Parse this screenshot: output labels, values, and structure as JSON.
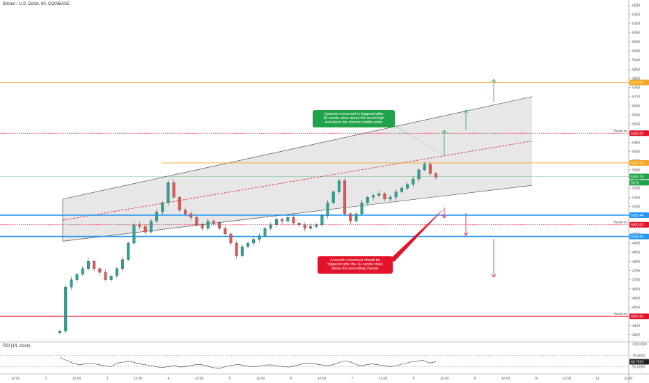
{
  "header": {
    "symbol": "Bitcoin / U.S. Dollar, 60, COINBASE",
    "rsi_title": "RSI (14, close)"
  },
  "annotations": {
    "bull_note": "Upwards movement is triggered after\n1H candle close above the recent high\nand above the channel middle point.",
    "bear_note": "A bearish movement should be\ntriggered after the 1H candle close\nbelow the ascending channel",
    "round_label": "Round nu"
  },
  "colors": {
    "up": "#26a69a",
    "down": "#ef5350",
    "channel_fill": "#e3e3e3",
    "channel_line": "#555555",
    "orange": "#f5a623",
    "blue": "#2196f3",
    "red_dotted": "#e3132a",
    "green": "#1fa34a"
  },
  "chart_data": {
    "type": "candlestick",
    "symbol": "Bitcoin / U.S. Dollar",
    "interval": "60",
    "exchange": "COINBASE",
    "x_tick_labels": [
      "12:00",
      "2",
      "12:00",
      "3",
      "12:00",
      "4",
      "12:00",
      "5",
      "12:00",
      "6",
      "12:00",
      "7",
      "12:00",
      "8",
      "12:00",
      "9",
      "12:00",
      "10",
      "12:00",
      "11",
      "12:00"
    ],
    "y_tick_labels": [
      6200,
      6150,
      6100,
      6050,
      6000,
      5950,
      5900,
      5850,
      5800,
      5750,
      5700,
      5650,
      5600,
      5550,
      5500,
      5450,
      5400,
      5350,
      5300,
      5250,
      5200,
      5150,
      5100,
      5050,
      5000,
      4950,
      4900,
      4850,
      4800,
      4750,
      4700,
      4650,
      4600,
      4550,
      4500,
      4450,
      4400
    ],
    "ylim": [
      4360,
      6220
    ],
    "horizontal_levels": [
      {
        "price": 5777.0,
        "label": "5777.00",
        "style": "solid",
        "color": "orange"
      },
      {
        "price": 5500.0,
        "label": "5500.00",
        "style": "dotted",
        "color": "red",
        "note": "Round nu"
      },
      {
        "price": 5337.7,
        "label": "5337.70",
        "style": "solid",
        "color": "orange"
      },
      {
        "price": 5263.76,
        "label": "5263.76",
        "style": "solid",
        "color": "green"
      },
      {
        "price": 5052.44,
        "label": "5052.44",
        "style": "solid",
        "color": "blue"
      },
      {
        "price": 5000.0,
        "label": "5000.00",
        "style": "dotted",
        "color": "red",
        "note": "Round nu"
      },
      {
        "price": 4935.94,
        "label": "4935.94",
        "style": "solid",
        "color": "blue"
      },
      {
        "price": 4500.0,
        "label": "4500.00",
        "style": "solid",
        "color": "red",
        "note": "Round nu"
      }
    ],
    "current_price_label": "5263.76",
    "countdown_label": "58:01",
    "channel": {
      "lower_start": 4910,
      "lower_end": 5215,
      "upper_start": 5140,
      "upper_end": 5700
    },
    "price_path": [
      4420,
      4660,
      4700,
      4730,
      4760,
      4800,
      4760,
      4740,
      4700,
      4720,
      4760,
      4810,
      4900,
      5000,
      4990,
      4960,
      5020,
      5070,
      5120,
      5230,
      5150,
      5080,
      5060,
      5040,
      5000,
      4980,
      5020,
      5010,
      4980,
      4950,
      4900,
      4830,
      4880,
      4900,
      4920,
      4940,
      4980,
      5000,
      5030,
      5020,
      5040,
      5010,
      5000,
      4980,
      4990,
      5000,
      5050,
      5120,
      5180,
      5240,
      5060,
      5020,
      5060,
      5120,
      5150,
      5160,
      5170,
      5140,
      5150,
      5180,
      5200,
      5220,
      5250,
      5300,
      5330,
      5280,
      5260
    ],
    "rsi": {
      "label": "RSI (14, close)",
      "value_label": "60.7919",
      "levels": [
        "100.0000",
        "75.0000",
        "50.0000"
      ],
      "values": [
        70,
        64,
        58,
        54,
        56,
        57,
        55,
        52,
        50,
        58,
        60,
        62,
        58,
        55,
        53,
        50,
        48,
        50,
        52,
        49,
        51,
        54,
        55,
        52,
        48,
        46,
        50,
        53,
        55,
        52,
        50,
        51,
        53,
        54,
        52,
        50,
        49,
        52,
        56,
        58,
        56,
        54,
        52,
        55,
        60,
        63,
        58,
        52,
        54,
        56,
        54,
        52,
        50,
        53,
        57,
        60,
        62,
        64,
        58,
        61
      ]
    }
  }
}
